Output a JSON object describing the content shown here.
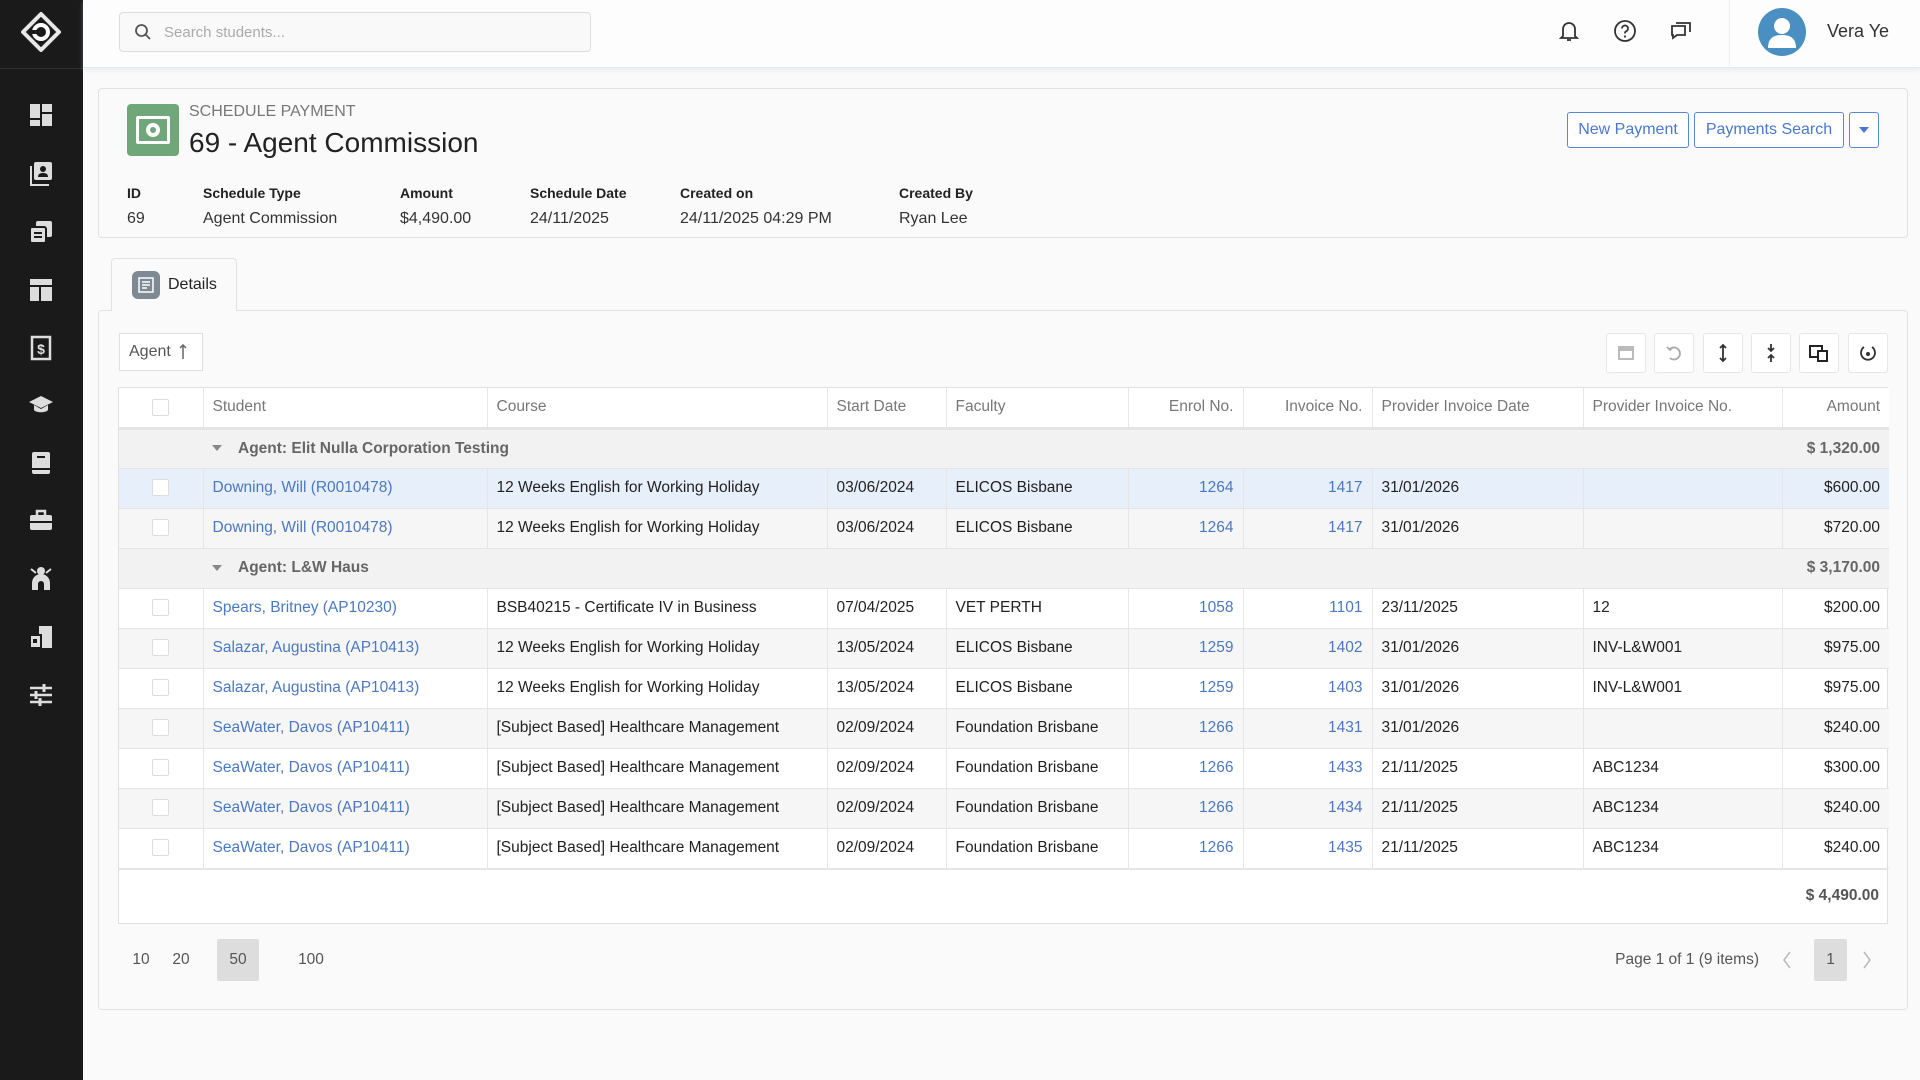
{
  "sidebar": {
    "items": [
      {
        "name": "dashboard",
        "icon": "dashboard-icon"
      },
      {
        "name": "contacts",
        "icon": "contacts-icon"
      },
      {
        "name": "documents",
        "icon": "documents-icon"
      },
      {
        "name": "layout",
        "icon": "layout-icon"
      },
      {
        "name": "payments",
        "icon": "dollar-receipt-icon"
      },
      {
        "name": "courses",
        "icon": "graduation-cap-icon"
      },
      {
        "name": "library",
        "icon": "book-icon"
      },
      {
        "name": "business",
        "icon": "briefcase-icon"
      },
      {
        "name": "agents",
        "icon": "network-icon"
      },
      {
        "name": "providers",
        "icon": "building-icon"
      },
      {
        "name": "settings",
        "icon": "sliders-icon"
      }
    ]
  },
  "topbar": {
    "search_placeholder": "Search students...",
    "user_name": "Vera Ye"
  },
  "header": {
    "eyebrow": "SCHEDULE PAYMENT",
    "title": "69 - Agent Commission",
    "new_payment": "New Payment",
    "payments_search": "Payments Search",
    "fields": [
      {
        "label": "ID",
        "value": "69"
      },
      {
        "label": "Schedule Type",
        "value": "Agent Commission"
      },
      {
        "label": "Amount",
        "value": "$4,490.00"
      },
      {
        "label": "Schedule Date",
        "value": "24/11/2025"
      },
      {
        "label": "Created on",
        "value": "24/11/2025 04:29 PM"
      },
      {
        "label": "Created By",
        "value": "Ryan Lee"
      }
    ]
  },
  "tabs": [
    {
      "label": "Details"
    }
  ],
  "grouping_chip": "Agent",
  "table": {
    "columns": [
      "Student",
      "Course",
      "Start Date",
      "Faculty",
      "Enrol No.",
      "Invoice No.",
      "Provider Invoice Date",
      "Provider Invoice No.",
      "Amount"
    ],
    "groups": [
      {
        "label": "Agent: Elit Nulla Corporation Testing",
        "total": "$ 1,320.00",
        "rows": [
          {
            "student": "Downing, Will (R0010478)",
            "course": "12 Weeks English for Working Holiday",
            "start": "03/06/2024",
            "faculty": "ELICOS Bisbane",
            "enrol": "1264",
            "invoice": "1417",
            "pdate": "31/01/2026",
            "pno": "",
            "amount": "$600.00",
            "selected": true
          },
          {
            "student": "Downing, Will (R0010478)",
            "course": "12 Weeks English for Working Holiday",
            "start": "03/06/2024",
            "faculty": "ELICOS Bisbane",
            "enrol": "1264",
            "invoice": "1417",
            "pdate": "31/01/2026",
            "pno": "",
            "amount": "$720.00"
          }
        ]
      },
      {
        "label": "Agent: L&W Haus",
        "total": "$ 3,170.00",
        "rows": [
          {
            "student": "Spears, Britney (AP10230)",
            "course": "BSB40215 - Certificate IV in Business",
            "start": "07/04/2025",
            "faculty": "VET PERTH",
            "enrol": "1058",
            "invoice": "1101",
            "pdate": "23/11/2025",
            "pno": "12",
            "amount": "$200.00"
          },
          {
            "student": "Salazar, Augustina (AP10413)",
            "course": "12 Weeks English for Working Holiday",
            "start": "13/05/2024",
            "faculty": "ELICOS Bisbane",
            "enrol": "1259",
            "invoice": "1402",
            "pdate": "31/01/2026",
            "pno": "INV-L&W001",
            "amount": "$975.00"
          },
          {
            "student": "Salazar, Augustina (AP10413)",
            "course": "12 Weeks English for Working Holiday",
            "start": "13/05/2024",
            "faculty": "ELICOS Bisbane",
            "enrol": "1259",
            "invoice": "1403",
            "pdate": "31/01/2026",
            "pno": "INV-L&W001",
            "amount": "$975.00"
          },
          {
            "student": "SeaWater, Davos (AP10411)",
            "course": "[Subject Based] Healthcare Management",
            "start": "02/09/2024",
            "faculty": "Foundation Brisbane",
            "enrol": "1266",
            "invoice": "1431",
            "pdate": "31/01/2026",
            "pno": "",
            "amount": "$240.00"
          },
          {
            "student": "SeaWater, Davos (AP10411)",
            "course": "[Subject Based] Healthcare Management",
            "start": "02/09/2024",
            "faculty": "Foundation Brisbane",
            "enrol": "1266",
            "invoice": "1433",
            "pdate": "21/11/2025",
            "pno": "ABC1234",
            "amount": "$300.00"
          },
          {
            "student": "SeaWater, Davos (AP10411)",
            "course": "[Subject Based] Healthcare Management",
            "start": "02/09/2024",
            "faculty": "Foundation Brisbane",
            "enrol": "1266",
            "invoice": "1434",
            "pdate": "21/11/2025",
            "pno": "ABC1234",
            "amount": "$240.00"
          },
          {
            "student": "SeaWater, Davos (AP10411)",
            "course": "[Subject Based] Healthcare Management",
            "start": "02/09/2024",
            "faculty": "Foundation Brisbane",
            "enrol": "1266",
            "invoice": "1435",
            "pdate": "21/11/2025",
            "pno": "ABC1234",
            "amount": "$240.00"
          }
        ]
      }
    ],
    "grand_total": "$ 4,490.00"
  },
  "pagination": {
    "sizes": [
      "10",
      "20",
      "50",
      "100"
    ],
    "active_size": "50",
    "info": "Page 1 of 1 (9 items)",
    "current_page": "1"
  },
  "colors": {
    "link": "#4a78c2",
    "accent": "#5b86d6",
    "sidebar": "#1a1a1a",
    "header_icon": "#6fa67a",
    "avatar": "#4a8fc1"
  }
}
